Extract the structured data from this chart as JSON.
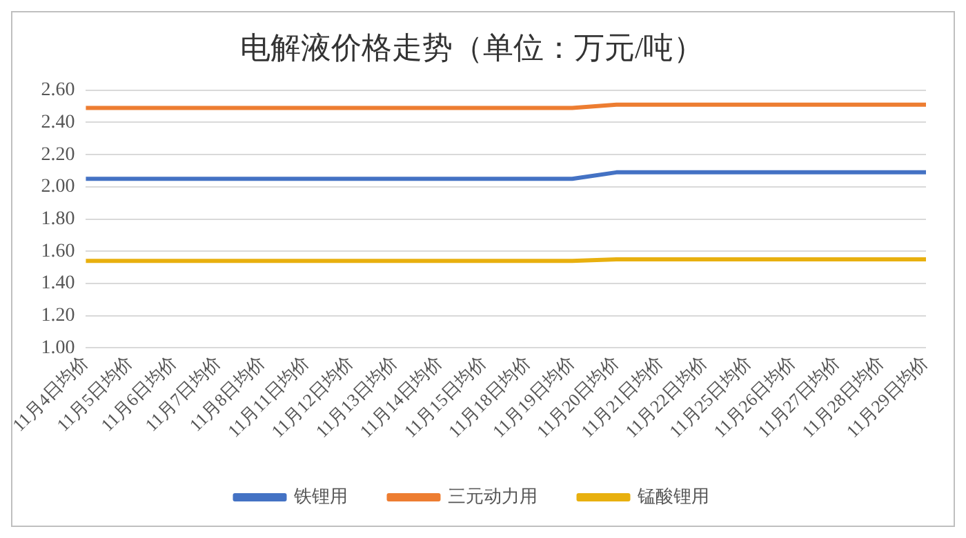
{
  "chart_data": {
    "type": "line",
    "title": "电解液价格走势（单位：万元/吨）",
    "categories": [
      "11月4日均价",
      "11月5日均价",
      "11月6日均价",
      "11月7日均价",
      "11月8日均价",
      "11月11日均价",
      "11月12日均价",
      "11月13日均价",
      "11月14日均价",
      "11月15日均价",
      "11月18日均价",
      "11月19日均价",
      "11月20日均价",
      "11月21日均价",
      "11月22日均价",
      "11月25日均价",
      "11月26日均价",
      "11月27日均价",
      "11月28日均价",
      "11月29日均价"
    ],
    "series": [
      {
        "name": "铁锂用",
        "color": "#4472c4",
        "values": [
          2.05,
          2.05,
          2.05,
          2.05,
          2.05,
          2.05,
          2.05,
          2.05,
          2.05,
          2.05,
          2.05,
          2.05,
          2.09,
          2.09,
          2.09,
          2.09,
          2.09,
          2.09,
          2.09,
          2.09
        ]
      },
      {
        "name": "三元动力用",
        "color": "#ed7d31",
        "values": [
          2.49,
          2.49,
          2.49,
          2.49,
          2.49,
          2.49,
          2.49,
          2.49,
          2.49,
          2.49,
          2.49,
          2.49,
          2.51,
          2.51,
          2.51,
          2.51,
          2.51,
          2.51,
          2.51,
          2.51
        ]
      },
      {
        "name": "锰酸锂用",
        "color": "#e8b00f",
        "values": [
          1.54,
          1.54,
          1.54,
          1.54,
          1.54,
          1.54,
          1.54,
          1.54,
          1.54,
          1.54,
          1.54,
          1.54,
          1.55,
          1.55,
          1.55,
          1.55,
          1.55,
          1.55,
          1.55,
          1.55
        ]
      }
    ],
    "ylim": [
      1.0,
      2.6
    ],
    "yticks": [
      {
        "value": 1.0,
        "label": "1.00"
      },
      {
        "value": 1.2,
        "label": "1.20"
      },
      {
        "value": 1.4,
        "label": "1.40"
      },
      {
        "value": 1.6,
        "label": "1.60"
      },
      {
        "value": 1.8,
        "label": "1.80"
      },
      {
        "value": 2.0,
        "label": "2.00"
      },
      {
        "value": 2.2,
        "label": "2.20"
      },
      {
        "value": 2.4,
        "label": "2.40"
      },
      {
        "value": 2.6,
        "label": "2.60"
      }
    ],
    "grid": "y",
    "legend": "bottom",
    "marker": "none",
    "line_style": "solid"
  }
}
